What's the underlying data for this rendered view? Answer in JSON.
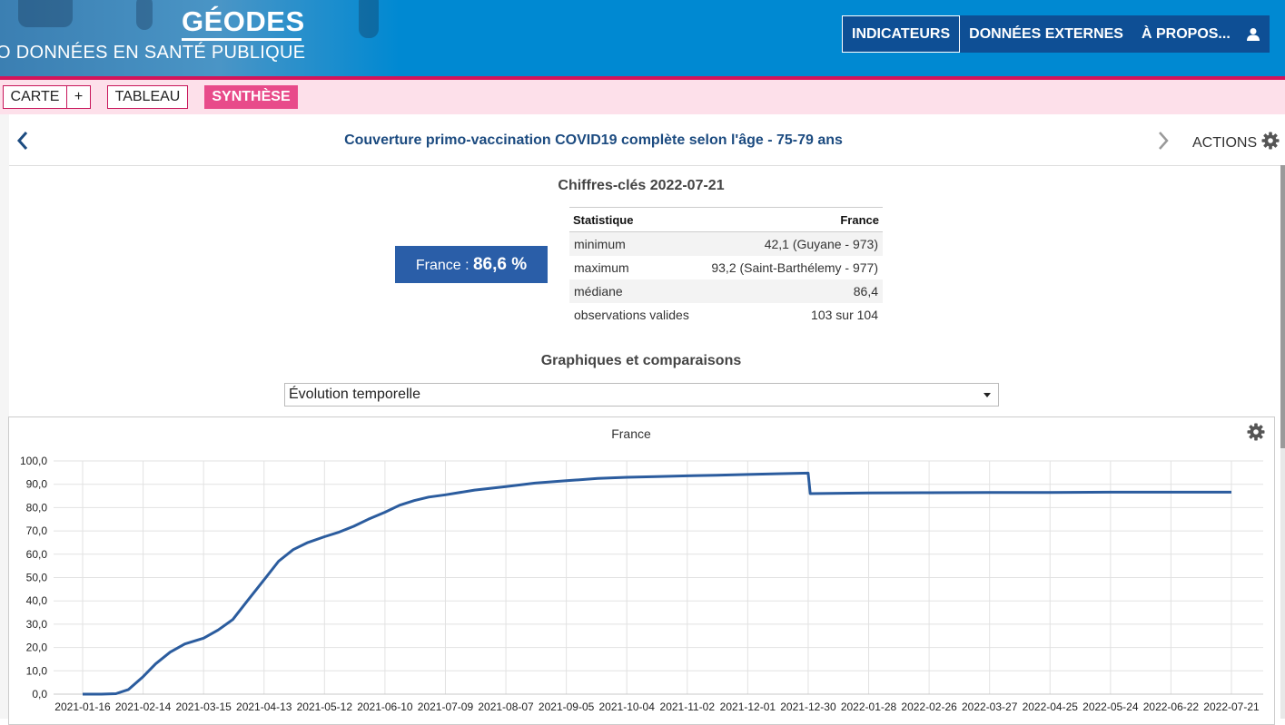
{
  "header": {
    "brand": "GÉODES",
    "subtitle": "O DONNÉES EN SANTÉ PUBLIQUE",
    "nav": [
      "INDICATEURS",
      "DONNÉES EXTERNES",
      "À PROPOS..."
    ],
    "active_nav": "INDICATEURS",
    "user_icon": "user-icon",
    "colors": {
      "header_bg": "#0089d2",
      "nav_bg": "#0e4f95",
      "accent_pink": "#d4145a"
    }
  },
  "tabs": {
    "carte": "CARTE",
    "plus": "+",
    "tableau": "TABLEAU",
    "synthese": "SYNTHÈSE",
    "active": "SYNTHÈSE"
  },
  "titlebar": {
    "title": "Couverture primo-vaccination COVID19 complète selon l'âge - 75-79 ans",
    "actions": "ACTIONS"
  },
  "key_figures": {
    "heading": "Chiffres-clés 2022-07-21",
    "value_label": "France : ",
    "value": "86,6 %",
    "table": {
      "headers": [
        "Statistique",
        "France"
      ],
      "rows": [
        [
          "minimum",
          "42,1 (Guyane - 973)"
        ],
        [
          "maximum",
          "93,2 (Saint-Barthélemy - 977)"
        ],
        [
          "médiane",
          "86,4"
        ],
        [
          "observations valides",
          "103 sur 104"
        ]
      ]
    }
  },
  "graphs": {
    "heading": "Graphiques et comparaisons",
    "select_value": "Évolution temporelle"
  },
  "chart_data": {
    "type": "line",
    "title": "France",
    "xlabel": "",
    "ylabel": "",
    "ylim": [
      0,
      100
    ],
    "yticks": [
      "0,0",
      "10,0",
      "20,0",
      "30,0",
      "40,0",
      "50,0",
      "60,0",
      "70,0",
      "80,0",
      "90,0",
      "100,0"
    ],
    "x_ticks": [
      "2021-01-16",
      "2021-02-14",
      "2021-03-15",
      "2021-04-13",
      "2021-05-12",
      "2021-06-10",
      "2021-07-09",
      "2021-08-07",
      "2021-09-05",
      "2021-10-04",
      "2021-11-02",
      "2021-12-01",
      "2021-12-30",
      "2022-01-28",
      "2022-02-26",
      "2022-03-27",
      "2022-04-25",
      "2022-05-24",
      "2022-06-22",
      "2022-07-21"
    ],
    "grid": true,
    "series": [
      {
        "color": "#2b5c9e",
        "x": [
          "2021-01-16",
          "2021-01-25",
          "2021-02-01",
          "2021-02-07",
          "2021-02-14",
          "2021-02-20",
          "2021-02-27",
          "2021-03-06",
          "2021-03-15",
          "2021-03-22",
          "2021-03-29",
          "2021-04-05",
          "2021-04-13",
          "2021-04-20",
          "2021-04-27",
          "2021-05-04",
          "2021-05-12",
          "2021-05-19",
          "2021-05-26",
          "2021-06-02",
          "2021-06-10",
          "2021-06-17",
          "2021-06-24",
          "2021-07-01",
          "2021-07-09",
          "2021-07-23",
          "2021-08-07",
          "2021-08-21",
          "2021-09-05",
          "2021-09-20",
          "2021-10-04",
          "2021-10-18",
          "2021-11-02",
          "2021-11-16",
          "2021-12-01",
          "2021-12-15",
          "2021-12-30",
          "2021-12-31",
          "2022-01-28",
          "2022-02-26",
          "2022-03-27",
          "2022-04-25",
          "2022-05-24",
          "2022-06-22",
          "2022-07-21"
        ],
        "values": [
          0.0,
          0.0,
          0.2,
          2.0,
          7.5,
          13.0,
          18.0,
          21.5,
          24.0,
          27.5,
          32.0,
          40.0,
          49.0,
          57.0,
          62.0,
          65.0,
          67.5,
          69.5,
          72.0,
          75.0,
          78.0,
          81.0,
          83.0,
          84.5,
          85.5,
          87.5,
          89.0,
          90.5,
          91.5,
          92.5,
          93.0,
          93.3,
          93.6,
          93.9,
          94.2,
          94.5,
          94.8,
          86.0,
          86.3,
          86.4,
          86.5,
          86.5,
          86.6,
          86.6,
          86.6
        ]
      }
    ]
  }
}
